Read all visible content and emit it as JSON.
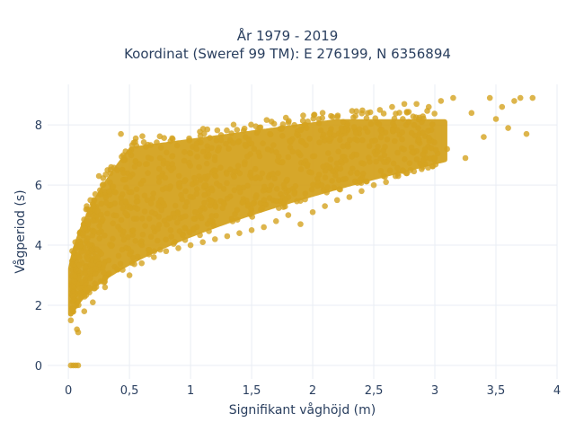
{
  "chart_data": {
    "type": "scatter",
    "title": [
      "År 1979 - 2019",
      "Koordinat (Sweref 99 TM): E 276199, N 6356894"
    ],
    "xlabel": "Signifikant våghöjd (m)",
    "ylabel": "Vågperiod (s)",
    "xlim": [
      -0.17,
      4.0
    ],
    "ylim": [
      -0.45,
      9.35
    ],
    "xticks": [
      0,
      0.5,
      1,
      1.5,
      2,
      2.5,
      3,
      3.5,
      4
    ],
    "xtick_labels": [
      "0",
      "0,5",
      "1",
      "1,5",
      "2",
      "2,5",
      "3",
      "3,5",
      "4"
    ],
    "yticks": [
      0,
      2,
      4,
      6,
      8
    ],
    "ytick_labels": [
      "0",
      "2",
      "4",
      "6",
      "8"
    ],
    "grid": true,
    "colors": {
      "marker": "#D4A31F",
      "grid": "#e9edf4",
      "plot_bg": "#ffffff",
      "text": "#2a3f5f"
    },
    "series": [
      {
        "points": [
          [
            0.02,
            1.5
          ],
          [
            0.03,
            1.9
          ],
          [
            0.04,
            2.3
          ],
          [
            0.05,
            2.8
          ],
          [
            0.06,
            3.2
          ],
          [
            0.07,
            1.2
          ],
          [
            0.08,
            1.1
          ],
          [
            0.09,
            3.6
          ],
          [
            0.1,
            4.0
          ],
          [
            0.12,
            4.4
          ],
          [
            0.13,
            1.8
          ],
          [
            0.15,
            5.3
          ],
          [
            0.16,
            4.8
          ],
          [
            0.18,
            5.5
          ],
          [
            0.2,
            2.1
          ],
          [
            0.22,
            5.7
          ],
          [
            0.25,
            6.3
          ],
          [
            0.28,
            6.0
          ],
          [
            0.3,
            2.6
          ],
          [
            0.32,
            6.5
          ],
          [
            0.35,
            6.6
          ],
          [
            0.4,
            6.5
          ],
          [
            0.45,
            7.0
          ],
          [
            0.5,
            7.1
          ],
          [
            0.4,
            3.2
          ],
          [
            0.5,
            3.0
          ],
          [
            0.55,
            6.8
          ],
          [
            0.43,
            7.7
          ],
          [
            0.6,
            3.4
          ],
          [
            0.65,
            6.4
          ],
          [
            0.7,
            3.6
          ],
          [
            0.75,
            6.9
          ],
          [
            0.8,
            3.8
          ],
          [
            0.85,
            6.7
          ],
          [
            0.9,
            3.9
          ],
          [
            0.95,
            7.1
          ],
          [
            1.0,
            4.0
          ],
          [
            1.05,
            7.2
          ],
          [
            1.1,
            4.1
          ],
          [
            1.15,
            7.0
          ],
          [
            1.2,
            4.2
          ],
          [
            1.25,
            7.5
          ],
          [
            1.3,
            4.3
          ],
          [
            1.35,
            7.4
          ],
          [
            1.4,
            4.4
          ],
          [
            1.45,
            7.6
          ],
          [
            1.5,
            4.5
          ],
          [
            1.55,
            7.8
          ],
          [
            1.6,
            4.6
          ],
          [
            1.65,
            7.7
          ],
          [
            1.7,
            4.8
          ],
          [
            1.75,
            7.9
          ],
          [
            1.8,
            5.0
          ],
          [
            1.85,
            8.0
          ],
          [
            1.9,
            4.7
          ],
          [
            1.95,
            7.9
          ],
          [
            2.0,
            5.1
          ],
          [
            2.05,
            8.2
          ],
          [
            2.1,
            5.3
          ],
          [
            2.15,
            8.3
          ],
          [
            2.2,
            5.5
          ],
          [
            2.25,
            8.1
          ],
          [
            2.3,
            5.6
          ],
          [
            2.35,
            8.3
          ],
          [
            2.4,
            5.8
          ],
          [
            2.45,
            8.4
          ],
          [
            2.5,
            6.0
          ],
          [
            2.55,
            8.5
          ],
          [
            2.6,
            6.1
          ],
          [
            2.65,
            8.6
          ],
          [
            2.7,
            6.3
          ],
          [
            2.75,
            8.7
          ],
          [
            2.8,
            6.5
          ],
          [
            2.85,
            8.7
          ],
          [
            2.9,
            6.6
          ],
          [
            2.95,
            8.6
          ],
          [
            3.0,
            6.9
          ],
          [
            3.05,
            8.8
          ],
          [
            3.1,
            7.2
          ],
          [
            3.15,
            8.9
          ],
          [
            3.25,
            6.9
          ],
          [
            3.3,
            8.4
          ],
          [
            3.4,
            7.6
          ],
          [
            3.45,
            8.9
          ],
          [
            3.5,
            8.2
          ],
          [
            3.55,
            8.6
          ],
          [
            3.6,
            7.9
          ],
          [
            3.65,
            8.8
          ],
          [
            3.7,
            8.9
          ],
          [
            3.75,
            7.7
          ],
          [
            3.8,
            8.9
          ],
          [
            0.02,
            0.0
          ],
          [
            0.04,
            0.0
          ],
          [
            0.06,
            0.0
          ],
          [
            0.08,
            0.0
          ]
        ]
      }
    ]
  }
}
